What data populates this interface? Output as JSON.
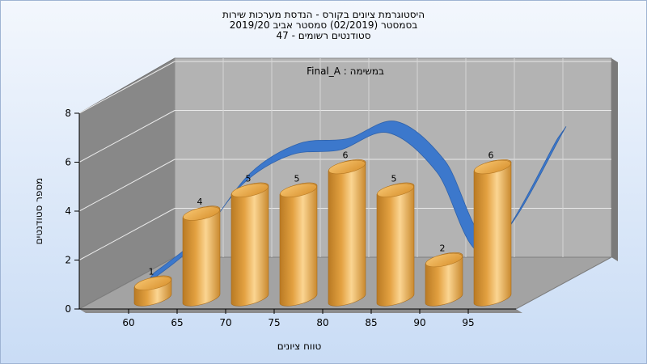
{
  "chart_data": {
    "type": "bar",
    "title_lines": [
      "היסטוגרמת ציונים בקורס - הנדסת מערכות שירות",
      "בסמסטר  (02/2019)  סמסטר אביב 2019/20",
      "סטודנטים רשומים - 47"
    ],
    "inner_title": "במשימה : Final_A",
    "xlabel": "טווח ציונים",
    "ylabel": "מספר סטודנטים",
    "x_ticks": [
      "60",
      "65",
      "70",
      "75",
      "80",
      "85",
      "90",
      "95"
    ],
    "y_ticks": [
      0,
      2,
      4,
      6,
      8
    ],
    "ylim": [
      0,
      8
    ],
    "categories": [
      "60",
      "65",
      "70",
      "75",
      "80",
      "85",
      "90",
      "95"
    ],
    "values": [
      1,
      4,
      5,
      5,
      6,
      5,
      2,
      6
    ],
    "curve_values": [
      1,
      2.6,
      5.1,
      6.3,
      6.5,
      7.2,
      5.6,
      2.3,
      6.6
    ],
    "colors": {
      "bar": "#e3a141",
      "bar_dark": "#b97a23",
      "bar_light": "#fbd592",
      "curve": "#3c78cc",
      "back_wall": "#b3b3b3",
      "side_wall": "#888888",
      "floor": "#a3a3a3"
    },
    "grid": true,
    "three_d": true
  }
}
